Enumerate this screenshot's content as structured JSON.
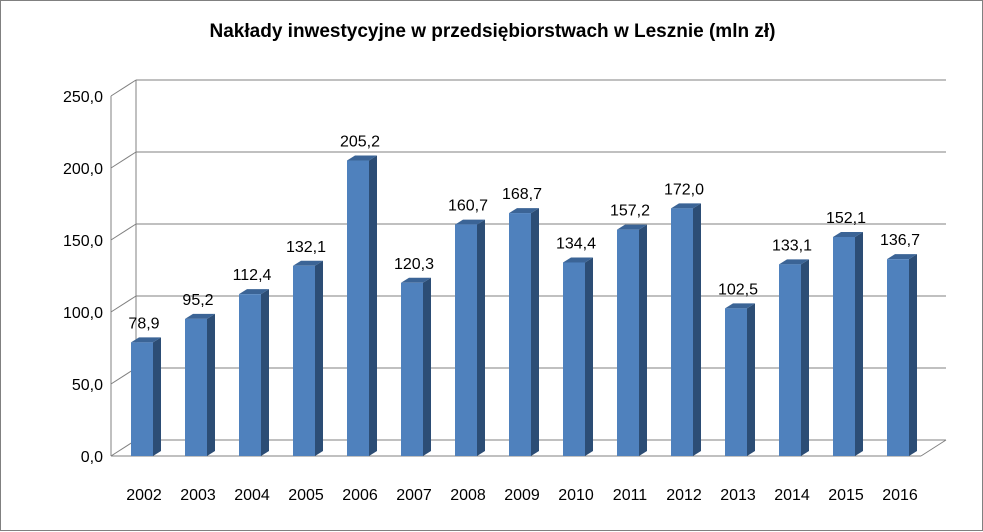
{
  "chart_data": {
    "type": "bar",
    "title": "Nakłady inwestycyjne w przedsiębiorstwach w Lesznie (mln zł)",
    "categories": [
      "2002",
      "2003",
      "2004",
      "2005",
      "2006",
      "2007",
      "2008",
      "2009",
      "2010",
      "2011",
      "2012",
      "2013",
      "2014",
      "2015",
      "2016"
    ],
    "values": [
      78.9,
      95.2,
      112.4,
      132.1,
      205.2,
      120.3,
      160.7,
      168.7,
      134.4,
      157.2,
      172.0,
      102.5,
      133.1,
      152.1,
      136.7
    ],
    "value_labels": [
      "78,9",
      "95,2",
      "112,4",
      "132,1",
      "205,2",
      "120,3",
      "160,7",
      "168,7",
      "134,4",
      "157,2",
      "172,0",
      "102,5",
      "133,1",
      "152,1",
      "136,7"
    ],
    "ylim": [
      0,
      250
    ],
    "yticks": [
      0,
      50,
      100,
      150,
      200,
      250
    ],
    "ytick_labels": [
      "0,0",
      "50,0",
      "100,0",
      "150,0",
      "200,0",
      "250,0"
    ],
    "grid": true,
    "style": "3d-column",
    "colors": {
      "bar_front": "#4F81BD",
      "bar_side": "#2C4D75",
      "bar_top": "#3B6496",
      "grid": "#808080"
    }
  }
}
